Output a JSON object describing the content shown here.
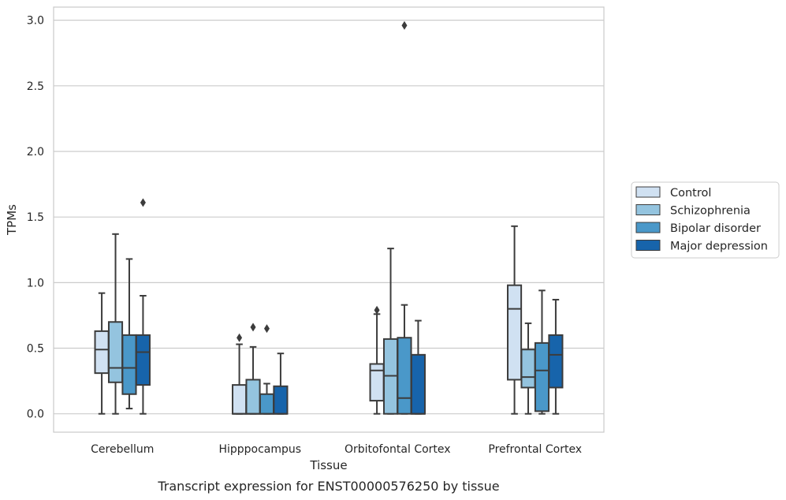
{
  "caption": "Transcript expression for ENST00000576250 by tissue",
  "chart_data": {
    "type": "box",
    "xlabel": "Tissue",
    "ylabel": "TPMs",
    "ylim": [
      -0.14,
      3.1
    ],
    "yticks": [
      0.0,
      0.5,
      1.0,
      1.5,
      2.0,
      2.5,
      3.0
    ],
    "ytick_labels": [
      "0.0",
      "0.5",
      "1.0",
      "1.5",
      "2.0",
      "2.5",
      "3.0"
    ],
    "grid": "horizontal",
    "legend_position": "right",
    "categories": [
      "Cerebellum",
      "Hipppocampus",
      "Orbitofontal Cortex",
      "Prefrontal Cortex"
    ],
    "series": [
      {
        "name": "Control",
        "color": "#d0e1f2",
        "boxes": [
          {
            "whislo": 0.0,
            "q1": 0.31,
            "med": 0.49,
            "q3": 0.63,
            "whishi": 0.92,
            "fliers": []
          },
          {
            "whislo": 0.0,
            "q1": 0.0,
            "med": 0.0,
            "q3": 0.22,
            "whishi": 0.53,
            "fliers": [
              0.58
            ]
          },
          {
            "whislo": 0.0,
            "q1": 0.1,
            "med": 0.33,
            "q3": 0.38,
            "whishi": 0.76,
            "fliers": [
              0.79
            ]
          },
          {
            "whislo": 0.0,
            "q1": 0.26,
            "med": 0.8,
            "q3": 0.98,
            "whishi": 1.43,
            "fliers": []
          }
        ]
      },
      {
        "name": "Schizophrenia",
        "color": "#94c4df",
        "boxes": [
          {
            "whislo": 0.0,
            "q1": 0.24,
            "med": 0.35,
            "q3": 0.7,
            "whishi": 1.37,
            "fliers": []
          },
          {
            "whislo": 0.0,
            "q1": 0.0,
            "med": 0.0,
            "q3": 0.26,
            "whishi": 0.51,
            "fliers": [
              0.66
            ]
          },
          {
            "whislo": 0.0,
            "q1": 0.0,
            "med": 0.29,
            "q3": 0.57,
            "whishi": 1.26,
            "fliers": []
          },
          {
            "whislo": 0.0,
            "q1": 0.2,
            "med": 0.28,
            "q3": 0.49,
            "whishi": 0.69,
            "fliers": []
          }
        ]
      },
      {
        "name": "Bipolar disorder",
        "color": "#4a98c9",
        "boxes": [
          {
            "whislo": 0.04,
            "q1": 0.15,
            "med": 0.35,
            "q3": 0.6,
            "whishi": 1.18,
            "fliers": []
          },
          {
            "whislo": 0.0,
            "q1": 0.0,
            "med": 0.0,
            "q3": 0.15,
            "whishi": 0.23,
            "fliers": [
              0.65
            ]
          },
          {
            "whislo": 0.0,
            "q1": 0.0,
            "med": 0.12,
            "q3": 0.58,
            "whishi": 0.83,
            "fliers": [
              2.96
            ]
          },
          {
            "whislo": 0.0,
            "q1": 0.02,
            "med": 0.33,
            "q3": 0.54,
            "whishi": 0.94,
            "fliers": []
          }
        ]
      },
      {
        "name": "Major depression",
        "color": "#1764ab",
        "boxes": [
          {
            "whislo": 0.0,
            "q1": 0.22,
            "med": 0.47,
            "q3": 0.6,
            "whishi": 0.9,
            "fliers": [
              1.61
            ]
          },
          {
            "whislo": 0.0,
            "q1": 0.0,
            "med": 0.0,
            "q3": 0.21,
            "whishi": 0.46,
            "fliers": []
          },
          {
            "whislo": 0.0,
            "q1": 0.0,
            "med": 0.0,
            "q3": 0.45,
            "whishi": 0.71,
            "fliers": []
          },
          {
            "whislo": 0.0,
            "q1": 0.2,
            "med": 0.45,
            "q3": 0.6,
            "whishi": 0.87,
            "fliers": []
          }
        ]
      }
    ]
  }
}
